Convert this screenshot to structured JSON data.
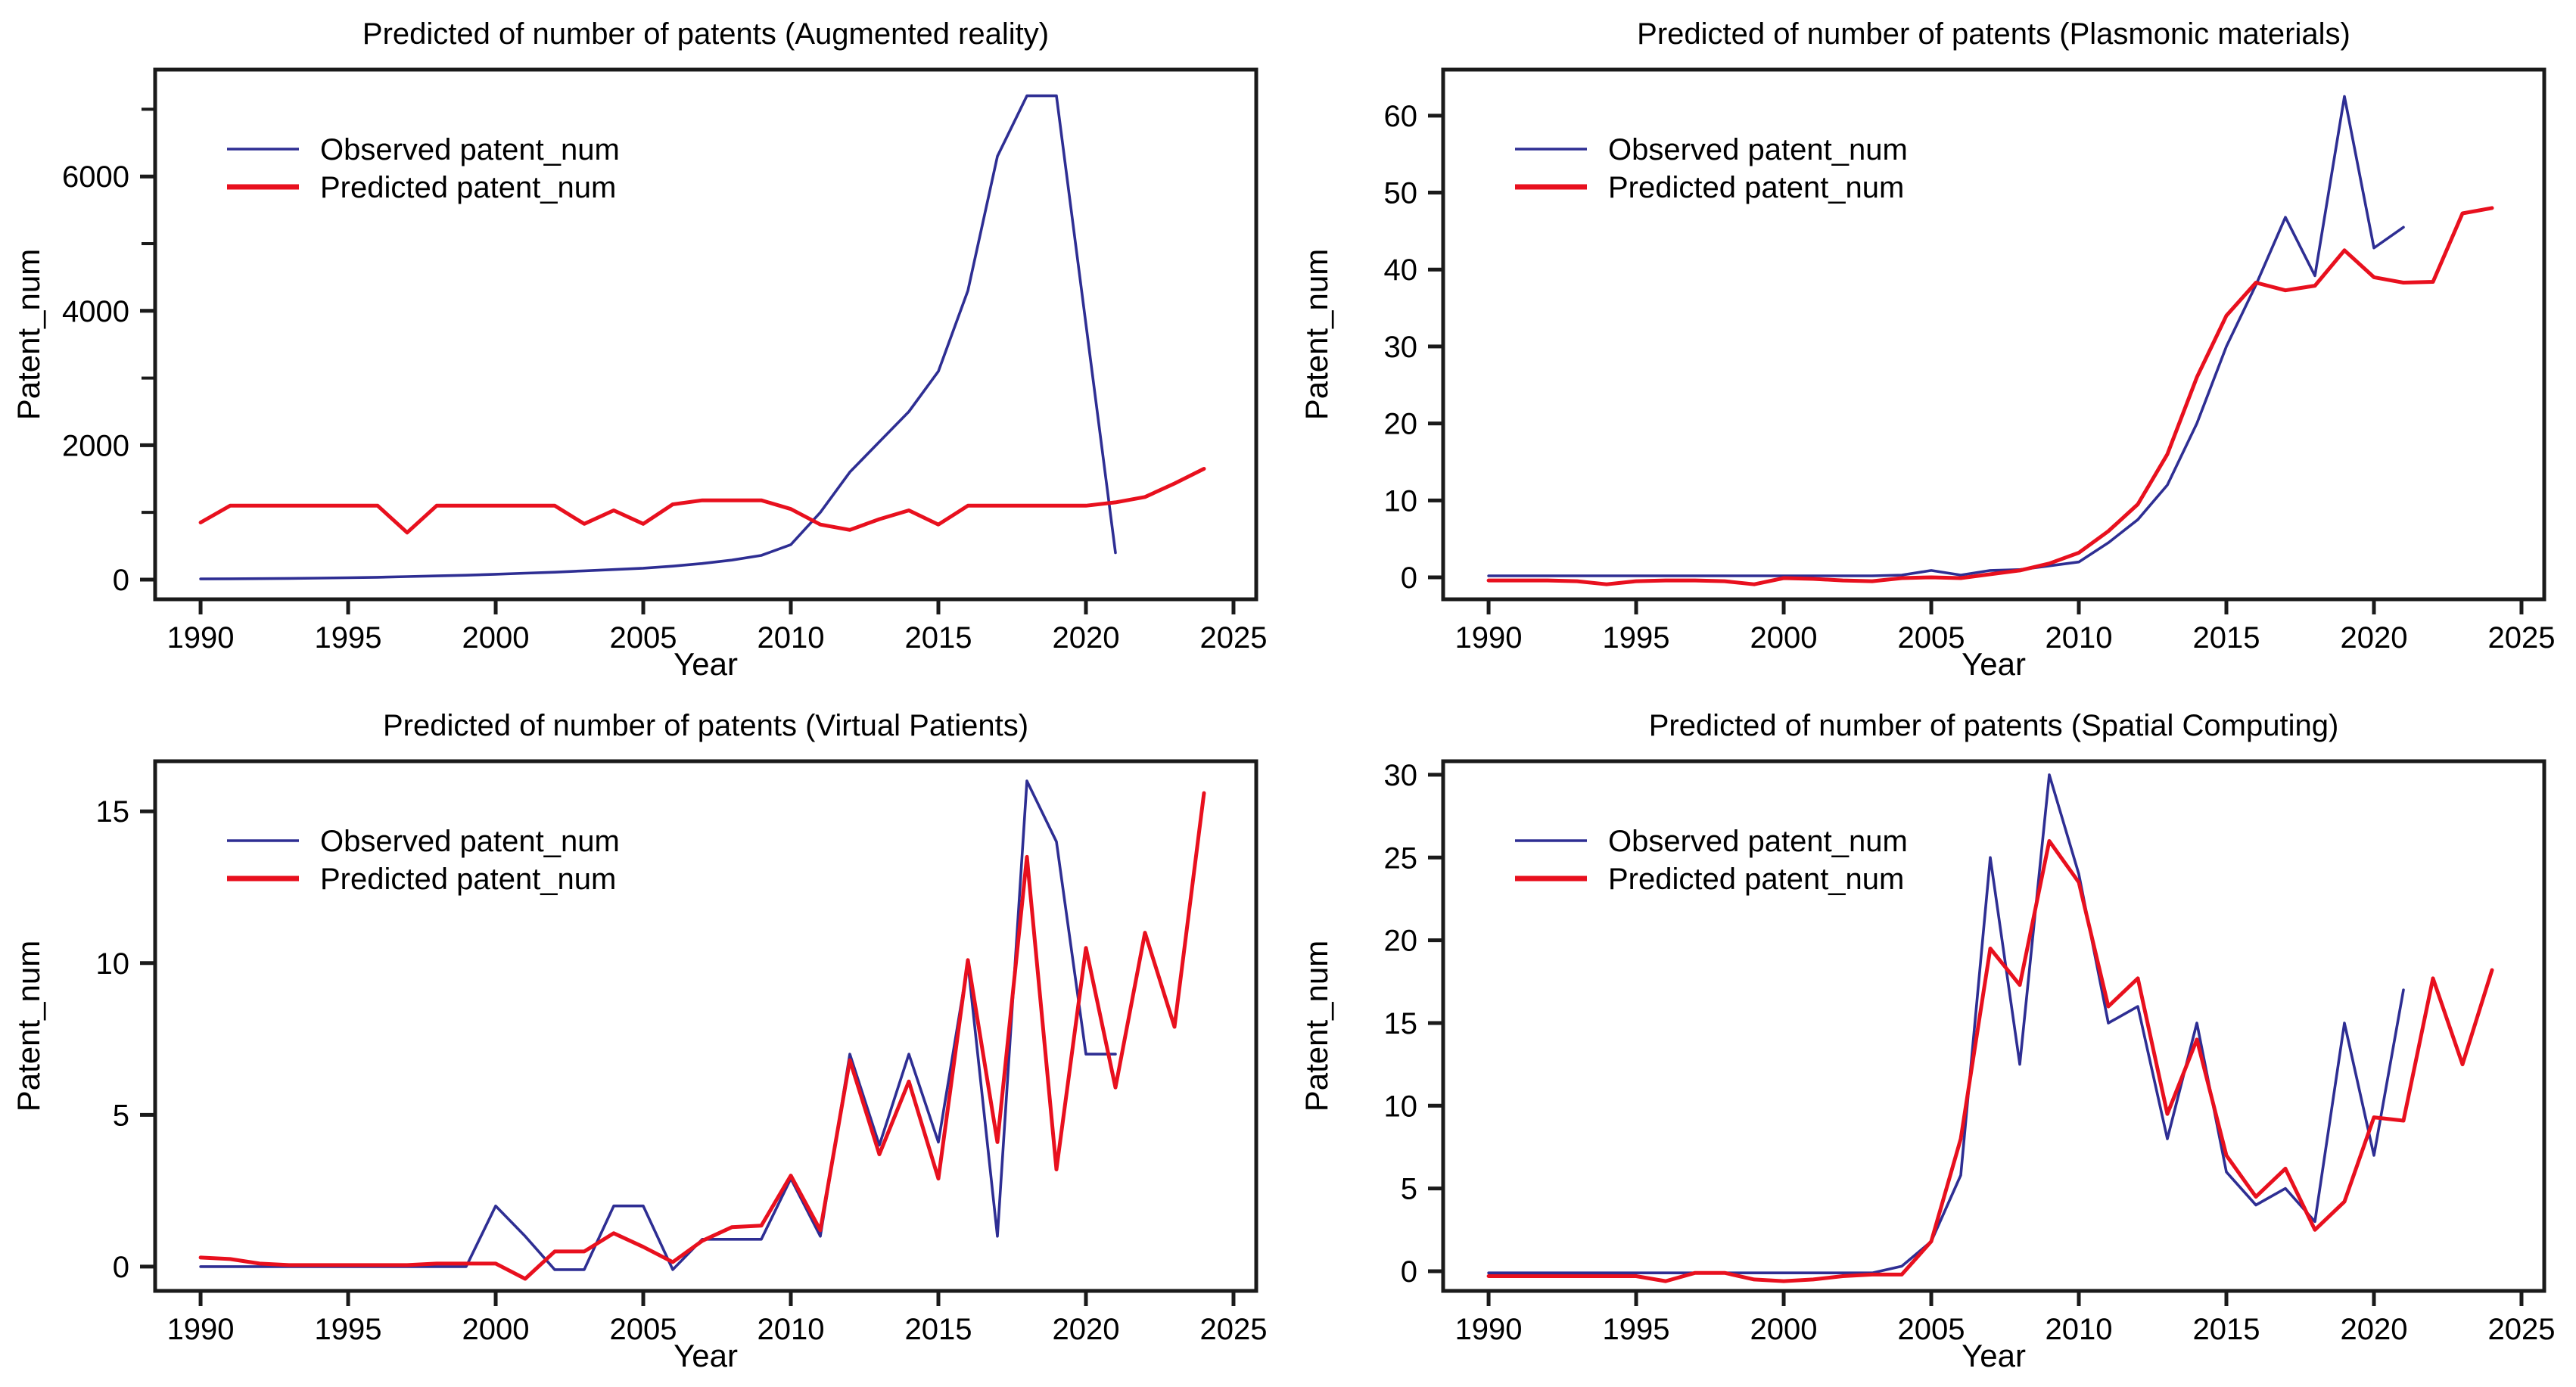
{
  "figure": {
    "background": "#ffffff",
    "x_axis_label": "Year",
    "y_axis_label": "Patent_num"
  },
  "colors": {
    "observed": "#2E2E93",
    "predicted": "#E8101E",
    "axis": "#1a1a1a",
    "text": "#000000"
  },
  "legend": {
    "observed_label": "Observed patent_num",
    "predicted_label": "Predicted patent_num"
  },
  "chart_data": [
    {
      "type": "line",
      "title": "Predicted of number of patents (Augmented reality)",
      "xlabel": "Year",
      "ylabel": "Patent_num",
      "xlim": [
        1988.46,
        2025.77
      ],
      "ylim": [
        -293,
        7590
      ],
      "xticks": [
        1990,
        1995,
        2000,
        2005,
        2010,
        2015,
        2020,
        2025
      ],
      "yticks": [
        0,
        2000,
        4000,
        6000
      ],
      "minor_yticks": [
        1000,
        3000,
        5000,
        7000
      ],
      "grid": false,
      "legend_position": "upper-left",
      "series": [
        {
          "name": "observed",
          "label": "Observed patent_num",
          "color": "#2E2E93",
          "year_start": 1990,
          "year_end": 2021,
          "values": [
            10,
            12,
            15,
            18,
            22,
            28,
            35,
            45,
            55,
            65,
            80,
            95,
            110,
            130,
            150,
            170,
            200,
            240,
            290,
            360,
            520,
            1000,
            1600,
            2050,
            2500,
            3100,
            4300,
            6300,
            7200,
            7200,
            3800,
            400
          ]
        },
        {
          "name": "predicted",
          "label": "Predicted patent_num",
          "color": "#E8101E",
          "year_start": 1990,
          "year_end": 2024,
          "values": [
            850,
            1100,
            1100,
            1100,
            1100,
            1100,
            1100,
            700,
            1100,
            1100,
            1100,
            1100,
            1100,
            830,
            1030,
            830,
            1120,
            1180,
            1180,
            1180,
            1050,
            820,
            740,
            900,
            1030,
            820,
            1100,
            1100,
            1100,
            1100,
            1100,
            1150,
            1230,
            1430,
            1650
          ]
        }
      ]
    },
    {
      "type": "line",
      "title": "Predicted of number of patents (Plasmonic materials)",
      "xlabel": "Year",
      "ylabel": "Patent_num",
      "xlim": [
        1988.46,
        2025.77
      ],
      "ylim": [
        -2.85,
        65.98
      ],
      "xticks": [
        1990,
        1995,
        2000,
        2005,
        2010,
        2015,
        2020,
        2025
      ],
      "yticks": [
        0,
        10,
        20,
        30,
        40,
        50,
        60
      ],
      "minor_yticks": [],
      "grid": false,
      "legend_position": "upper-left",
      "series": [
        {
          "name": "observed",
          "label": "Observed patent_num",
          "color": "#2E2E93",
          "year_start": 1990,
          "year_end": 2021,
          "values": [
            0.2,
            0.2,
            0.2,
            0.2,
            0.2,
            0.2,
            0.2,
            0.2,
            0.2,
            0.2,
            0.2,
            0.2,
            0.2,
            0.2,
            0.3,
            0.9,
            0.3,
            0.9,
            1.0,
            1.5,
            2.0,
            4.5,
            7.5,
            12,
            20,
            30,
            38,
            46.8,
            39.2,
            62.5,
            42.8,
            45.5
          ]
        },
        {
          "name": "predicted",
          "label": "Predicted patent_num",
          "color": "#E8101E",
          "year_start": 1990,
          "year_end": 2024,
          "values": [
            -0.4,
            -0.4,
            -0.4,
            -0.5,
            -0.9,
            -0.5,
            -0.4,
            -0.4,
            -0.5,
            -0.9,
            -0.1,
            -0.2,
            -0.4,
            -0.5,
            -0.1,
            0.0,
            -0.1,
            0.4,
            0.9,
            1.8,
            3.2,
            6.0,
            9.5,
            16,
            26,
            34,
            38.3,
            37.3,
            37.9,
            42.5,
            39,
            38.3,
            38.4,
            47.3,
            48
          ]
        }
      ]
    },
    {
      "type": "line",
      "title": "Predicted of number of patents (Virtual Patients)",
      "xlabel": "Year",
      "ylabel": "Patent_num",
      "xlim": [
        1988.46,
        2025.77
      ],
      "ylim": [
        -0.8,
        16.65
      ],
      "xticks": [
        1990,
        1995,
        2000,
        2005,
        2010,
        2015,
        2020,
        2025
      ],
      "yticks": [
        0,
        5,
        10,
        15
      ],
      "minor_yticks": [],
      "grid": false,
      "legend_position": "upper-left",
      "series": [
        {
          "name": "observed",
          "label": "Observed patent_num",
          "color": "#2E2E93",
          "year_start": 1990,
          "year_end": 2021,
          "values": [
            0,
            0,
            0,
            0,
            0,
            0,
            0,
            0,
            0,
            0,
            2,
            1,
            -0.1,
            -0.1,
            2,
            2,
            -0.1,
            0.9,
            0.9,
            0.9,
            2.9,
            1.0,
            7,
            4,
            7,
            4.1,
            10,
            1,
            16,
            14,
            7,
            7
          ]
        },
        {
          "name": "predicted",
          "label": "Predicted patent_num",
          "color": "#E8101E",
          "year_start": 1990,
          "year_end": 2024,
          "values": [
            0.3,
            0.25,
            0.1,
            0.05,
            0.05,
            0.05,
            0.05,
            0.05,
            0.1,
            0.1,
            0.1,
            -0.4,
            0.5,
            0.5,
            1.1,
            0.65,
            0.15,
            0.85,
            1.3,
            1.35,
            3.0,
            1.2,
            6.8,
            3.7,
            6.1,
            2.9,
            10.1,
            4.1,
            13.5,
            3.2,
            10.5,
            5.9,
            11.0,
            7.9,
            15.6
          ]
        }
      ]
    },
    {
      "type": "line",
      "title": "Predicted of number of patents (Spatial Computing)",
      "xlabel": "Year",
      "ylabel": "Patent_num",
      "xlim": [
        1988.46,
        2025.77
      ],
      "ylim": [
        -1.19,
        30.82
      ],
      "xticks": [
        1990,
        1995,
        2000,
        2005,
        2010,
        2015,
        2020,
        2025
      ],
      "yticks": [
        0,
        5,
        10,
        15,
        20,
        25,
        30
      ],
      "minor_yticks": [],
      "grid": false,
      "legend_position": "upper-left",
      "series": [
        {
          "name": "observed",
          "label": "Observed patent_num",
          "color": "#2E2E93",
          "year_start": 1990,
          "year_end": 2021,
          "values": [
            -0.1,
            -0.1,
            -0.1,
            -0.1,
            -0.1,
            -0.1,
            -0.1,
            -0.1,
            -0.1,
            -0.1,
            -0.1,
            -0.1,
            -0.1,
            -0.1,
            0.3,
            1.8,
            5.8,
            25,
            12.5,
            30,
            24,
            15,
            16,
            8,
            15,
            6,
            4,
            5,
            3,
            15,
            7,
            17
          ]
        },
        {
          "name": "predicted",
          "label": "Predicted patent_num",
          "color": "#E8101E",
          "year_start": 1990,
          "year_end": 2024,
          "values": [
            -0.3,
            -0.3,
            -0.3,
            -0.3,
            -0.3,
            -0.3,
            -0.6,
            -0.1,
            -0.1,
            -0.5,
            -0.6,
            -0.5,
            -0.3,
            -0.2,
            -0.2,
            1.8,
            8,
            19.5,
            17.3,
            26,
            23.5,
            16,
            17.7,
            9.5,
            14,
            7,
            4.5,
            6.2,
            2.5,
            4.2,
            9.3,
            9.1,
            17.7,
            12.5,
            18.2
          ]
        }
      ]
    }
  ]
}
